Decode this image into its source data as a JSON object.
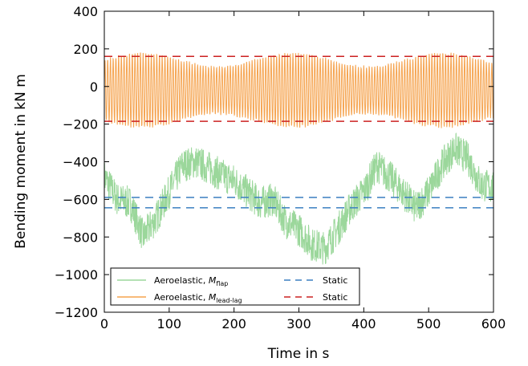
{
  "chart_data": {
    "type": "line",
    "title": "",
    "xlabel": "Time in s",
    "ylabel": "Bending moment in kN m",
    "xlim": [
      0,
      600
    ],
    "ylim": [
      -1200,
      400
    ],
    "xticks": [
      0,
      100,
      200,
      300,
      400,
      500,
      600
    ],
    "yticks": [
      -1200,
      -1000,
      -800,
      -600,
      -400,
      -200,
      0,
      200,
      400
    ],
    "ytick_labels": [
      "−1200",
      "−1000",
      "−800",
      "−600",
      "−400",
      "−200",
      "0",
      "200",
      "400"
    ],
    "grid": false,
    "legend_position": "lower-center",
    "series": [
      {
        "name": "Aeroelastic, ",
        "name_italic": "M",
        "name_sub": "flap",
        "color": "#9bd79b",
        "kind": "signal",
        "base": {
          "x": [
            0,
            20,
            40,
            60,
            80,
            100,
            120,
            140,
            160,
            180,
            200,
            220,
            240,
            260,
            280,
            300,
            320,
            340,
            360,
            380,
            400,
            420,
            440,
            460,
            480,
            500,
            520,
            540,
            560,
            580,
            600
          ],
          "y": [
            -480,
            -600,
            -620,
            -800,
            -700,
            -560,
            -420,
            -400,
            -430,
            -470,
            -500,
            -560,
            -620,
            -600,
            -720,
            -760,
            -840,
            -860,
            -760,
            -640,
            -560,
            -420,
            -480,
            -560,
            -650,
            -560,
            -420,
            -330,
            -380,
            -520,
            -540
          ]
        },
        "amplitude": 90
      },
      {
        "name": "Aeroelastic, ",
        "name_italic": "M",
        "name_sub": "lead-lag",
        "color": "#f5a34e",
        "kind": "oscillation",
        "center": -20,
        "amplitude": 195
      },
      {
        "name": "Static",
        "color": "#3a7fc1",
        "kind": "static",
        "y": [
          -590,
          -645
        ]
      },
      {
        "name": "Static",
        "color": "#cc2222",
        "kind": "static",
        "y": [
          160,
          -185
        ]
      }
    ]
  }
}
